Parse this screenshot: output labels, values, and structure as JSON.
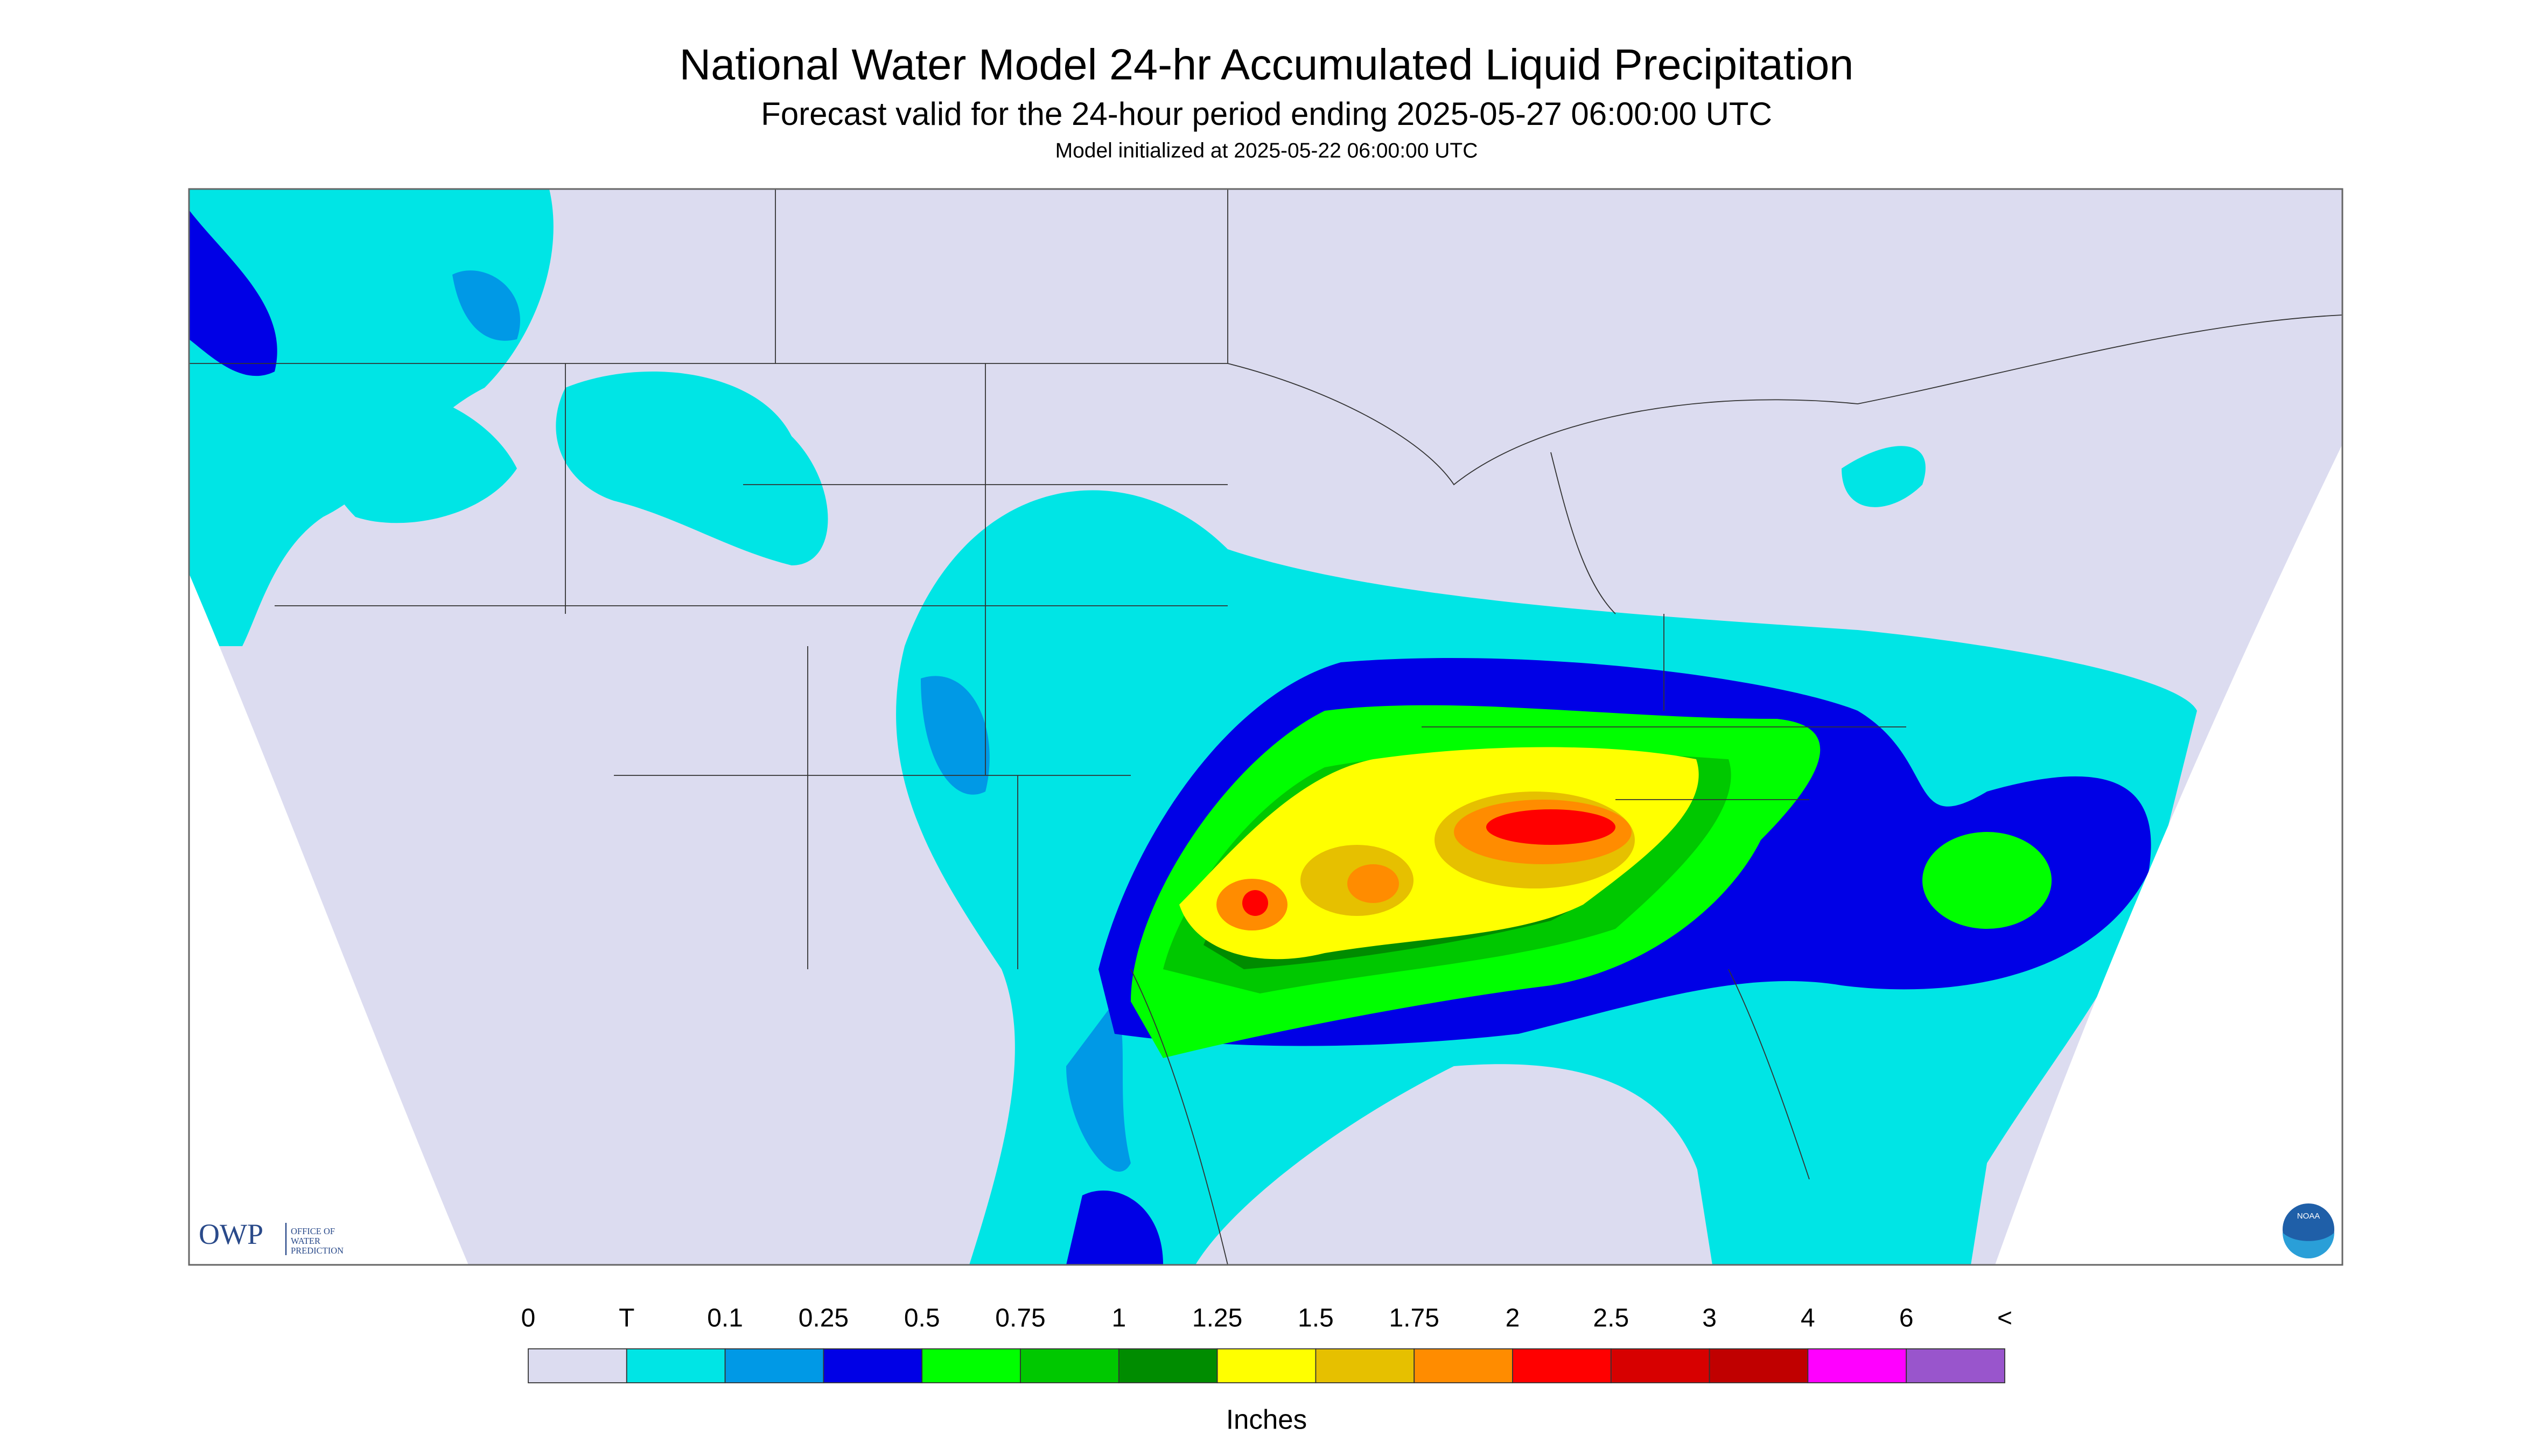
{
  "header": {
    "title": "National Water Model 24-hr Accumulated Liquid Precipitation",
    "subtitle": "Forecast valid for the 24-hour period ending 2025-05-27 06:00:00 UTC",
    "init": "Model initialized at 2025-05-22 06:00:00 UTC"
  },
  "logos": {
    "owp": "OWP",
    "owp_text": [
      "OFFICE OF",
      "WATER",
      "PREDICTION"
    ],
    "noaa": "NOAA"
  },
  "legend": {
    "labels": [
      "0",
      "T",
      "0.1",
      "0.25",
      "0.5",
      "0.75",
      "1",
      "1.25",
      "1.5",
      "1.75",
      "2",
      "2.5",
      "3",
      "4",
      "6",
      "<"
    ],
    "colors": [
      "#dcdcf0",
      "#00e5e5",
      "#0099e6",
      "#0000e6",
      "#00ff00",
      "#00c800",
      "#008c00",
      "#ffff00",
      "#e6c000",
      "#ff8c00",
      "#ff0000",
      "#d70000",
      "#c00000",
      "#ff00ff",
      "#9955cc"
    ],
    "unit": "Inches"
  }
}
